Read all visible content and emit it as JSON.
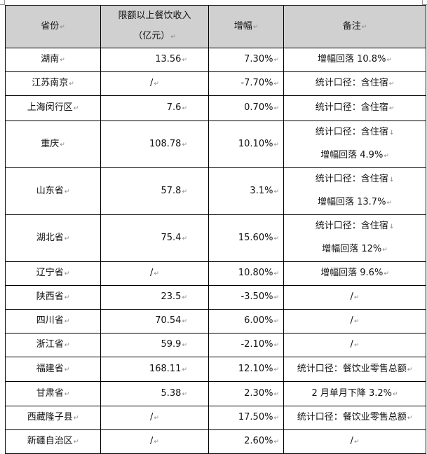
{
  "table": {
    "headers": [
      "省份",
      "限额以上餐饮收入",
      "（亿元）",
      "增幅",
      "备注"
    ],
    "rows": [
      {
        "province": "湖南",
        "revenue": "13.56",
        "growth": "7.30%",
        "note": [
          "增幅回落 10.8%"
        ]
      },
      {
        "province": "江苏南京",
        "revenue": "/",
        "growth": "-7.70%",
        "note": [
          "统计口径：含住宿"
        ]
      },
      {
        "province": "上海闵行区",
        "revenue": "7.6",
        "growth": "0.70%",
        "note": [
          "统计口径：含住宿"
        ]
      },
      {
        "province": "重庆",
        "revenue": "108.78",
        "growth": "10.10%",
        "note": [
          "统计口径：含住宿",
          "增幅回落 4.9%"
        ]
      },
      {
        "province": "山东省",
        "revenue": "57.8",
        "growth": "3.1%",
        "note": [
          "统计口径：含住宿",
          "增幅回落 13.7%"
        ]
      },
      {
        "province": "湖北省",
        "revenue": "75.4",
        "growth": "15.60%",
        "note": [
          "统计口径：含住宿",
          "增幅回落 12%"
        ]
      },
      {
        "province": "辽宁省",
        "revenue": "/",
        "growth": "10.80%",
        "note": [
          "增幅回落 9.6%"
        ]
      },
      {
        "province": "陕西省",
        "revenue": "23.5",
        "growth": "-3.50%",
        "note": [
          "/"
        ]
      },
      {
        "province": "四川省",
        "revenue": "70.54",
        "growth": "6.00%",
        "note": [
          "/"
        ]
      },
      {
        "province": "浙江省",
        "revenue": "59.9",
        "growth": "-2.10%",
        "note": [
          "/"
        ]
      },
      {
        "province": "福建省",
        "revenue": "168.11",
        "growth": "12.10%",
        "note": [
          "统计口径：餐饮业零售总额"
        ]
      },
      {
        "province": "甘肃省",
        "revenue": "5.38",
        "growth": "2.30%",
        "note": [
          "2 月单月下降 3.2%"
        ]
      },
      {
        "province": "西藏隆子县",
        "revenue": "/",
        "growth": "17.50%",
        "note": [
          "统计口径：餐饮业零售总额"
        ]
      },
      {
        "province": "新疆自治区",
        "revenue": "/",
        "growth": "2.60%",
        "note": [
          "/"
        ]
      }
    ]
  }
}
